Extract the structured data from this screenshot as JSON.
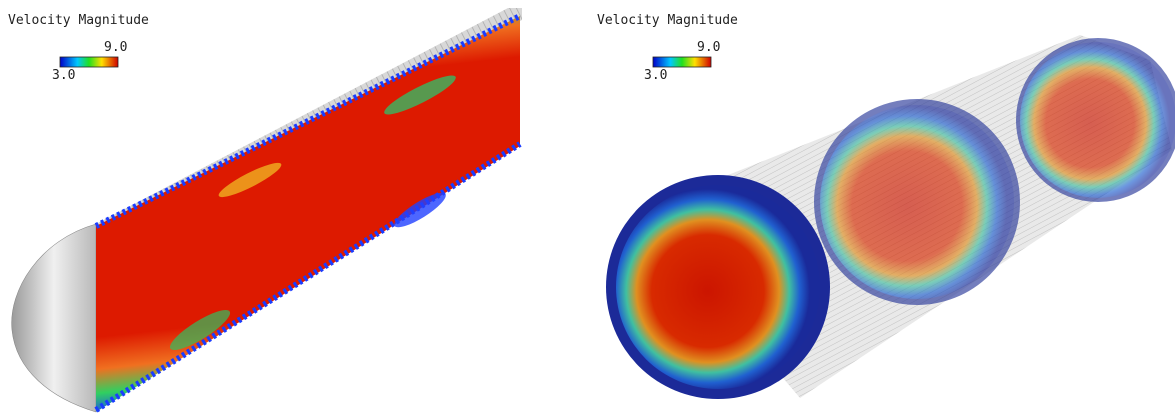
{
  "panels": [
    {
      "title": "Velocity Magnitude",
      "colorbar": {
        "max_label": "9.0",
        "min_label": "3.0"
      }
    },
    {
      "title": "Velocity Magnitude",
      "colorbar": {
        "max_label": "9.0",
        "min_label": "3.0"
      }
    }
  ]
}
